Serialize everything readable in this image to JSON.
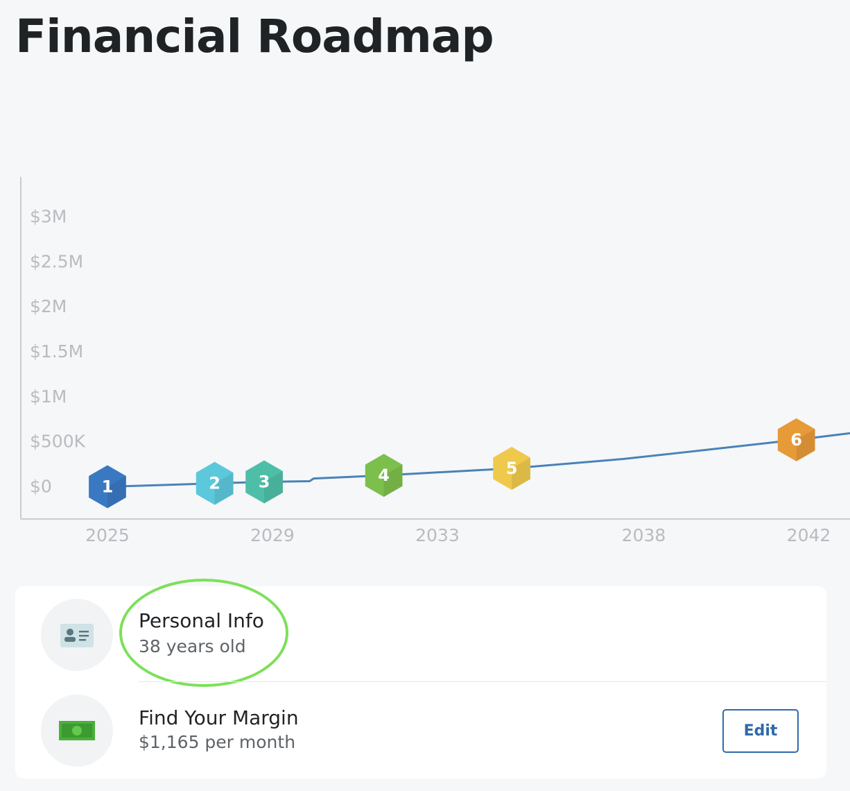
{
  "header": {
    "title": "Financial Roadmap"
  },
  "chart_data": {
    "type": "line",
    "x": [
      2025,
      2027.6,
      2028.8,
      2029.9,
      2030,
      2031.7,
      2034.8,
      2037.5,
      2039.2,
      2041.7,
      2043
    ],
    "series": [
      {
        "color": "#4a82b8",
        "values": [
          8000,
          46000,
          62000,
          70000,
          100000,
          135000,
          213000,
          317000,
          402000,
          530000,
          603000
        ]
      }
    ],
    "xlim": [
      2022.9,
      2043
    ],
    "xticks": [
      2025,
      2029,
      2033,
      2038,
      2042
    ],
    "ylim": [
      -350000,
      3450000
    ],
    "yticks": [
      {
        "value": 0,
        "label": "$0"
      },
      {
        "value": 500000,
        "label": "$500K"
      },
      {
        "value": 1000000,
        "label": "$1M"
      },
      {
        "value": 1500000,
        "label": "$1.5M"
      },
      {
        "value": 2000000,
        "label": "$2M"
      },
      {
        "value": 2500000,
        "label": "$2.5M"
      },
      {
        "value": 3000000,
        "label": "$3M"
      }
    ],
    "grid": false,
    "milestones": [
      {
        "label": "1",
        "x": 2025,
        "value": 8000,
        "color": "#3a78c2"
      },
      {
        "label": "2",
        "x": 2027.6,
        "value": 46000,
        "color": "#5cc8dc"
      },
      {
        "label": "3",
        "x": 2028.8,
        "value": 62000,
        "color": "#4fbea8"
      },
      {
        "label": "4",
        "x": 2031.7,
        "value": 135000,
        "color": "#7cbf4c"
      },
      {
        "label": "5",
        "x": 2034.8,
        "value": 213000,
        "color": "#efc94c"
      },
      {
        "label": "6",
        "x": 2041.7,
        "value": 530000,
        "color": "#e69a38"
      }
    ]
  },
  "cards": [
    {
      "title": "Personal Info",
      "subtitle": "38 years old"
    },
    {
      "title": "Find Your Margin",
      "subtitle": "$1,165 per month",
      "button": "Edit"
    }
  ]
}
